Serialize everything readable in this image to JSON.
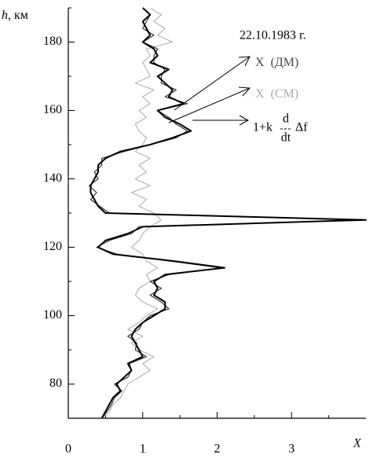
{
  "chart_data": {
    "type": "profile",
    "ylabel": {
      "symbol": "h",
      "text": ", км"
    },
    "xlabel": "X",
    "date": "22.10.1983 г.",
    "ylim": [
      70,
      190
    ],
    "yticks": [
      80,
      100,
      120,
      140,
      160,
      180
    ],
    "yminorticks": [
      90,
      110,
      130,
      150,
      170,
      190
    ],
    "xlim": [
      0,
      4
    ],
    "xticks": [
      0,
      1,
      2,
      3
    ],
    "xminorticks": [
      0.5,
      1.5,
      2.5,
      3.5
    ],
    "y": [
      70,
      72,
      74,
      76,
      78,
      80,
      82,
      84,
      86,
      88,
      90,
      92,
      94,
      96,
      98,
      100,
      102,
      104,
      106,
      108,
      110,
      112,
      114,
      116,
      118,
      120,
      122,
      124,
      126,
      128,
      130,
      132,
      134,
      136,
      138,
      140,
      142,
      144,
      146,
      148,
      150,
      152,
      154,
      156,
      158,
      160,
      162,
      164,
      166,
      168,
      170,
      172,
      174,
      176,
      178,
      180,
      182,
      184,
      186,
      188,
      190
    ],
    "series": [
      {
        "name": "X",
        "label_suffix": "(СМ)",
        "color": "#aaaaaa",
        "width": 1,
        "values": [
          0.45,
          0.55,
          0.6,
          0.7,
          0.75,
          0.8,
          0.95,
          1.1,
          1.0,
          1.15,
          0.95,
          0.85,
          1.0,
          0.8,
          0.95,
          1.05,
          1.2,
          1.0,
          0.9,
          0.95,
          1.1,
          1.05,
          1.2,
          1.05,
          1.0,
          0.85,
          0.95,
          1.0,
          1.1,
          1.25,
          1.15,
          0.95,
          1.05,
          0.85,
          1.1,
          0.9,
          1.05,
          0.95,
          1.1,
          0.9,
          1.0,
          1.05,
          0.95,
          0.9,
          1.05,
          0.95,
          1.1,
          1.0,
          1.15,
          0.9,
          1.1,
          1.05,
          1.0,
          1.1,
          1.05,
          1.4,
          1.2,
          1.3,
          1.15,
          1.25,
          1.1
        ]
      },
      {
        "name": "X",
        "label_suffix": "(ДМ)",
        "color": "#333333",
        "width": 1.2,
        "values": [
          0.45,
          0.52,
          0.58,
          0.62,
          0.72,
          0.62,
          0.8,
          0.85,
          0.82,
          1.05,
          0.9,
          0.92,
          0.8,
          0.95,
          1.0,
          1.1,
          1.35,
          1.25,
          1.1,
          1.25,
          1.1,
          1.35,
          2.05,
          1.35,
          0.65,
          0.38,
          0.55,
          0.85,
          0.95,
          3.95,
          0.55,
          0.42,
          0.3,
          0.38,
          0.28,
          0.4,
          0.35,
          0.45,
          0.45,
          0.75,
          1.1,
          1.45,
          1.6,
          1.45,
          1.35,
          1.2,
          1.6,
          1.3,
          1.45,
          1.25,
          1.25,
          1.3,
          1.15,
          1.15,
          1.2,
          1.0,
          1.15,
          1.0,
          1.05,
          1.1,
          1.0
        ]
      },
      {
        "name": "1+k",
        "formula": {
          "num": "d",
          "den": "dt",
          "suffix": "Δf"
        },
        "color": "#000000",
        "width": 2,
        "values": [
          0.45,
          0.5,
          0.55,
          0.6,
          0.7,
          0.65,
          0.75,
          0.85,
          0.8,
          1.0,
          0.95,
          0.9,
          0.85,
          0.9,
          1.0,
          1.15,
          1.3,
          1.3,
          1.15,
          1.2,
          1.15,
          1.3,
          2.1,
          1.4,
          0.6,
          0.4,
          0.5,
          0.8,
          1.0,
          4.0,
          0.5,
          0.4,
          0.35,
          0.3,
          0.3,
          0.35,
          0.4,
          0.4,
          0.5,
          0.7,
          1.1,
          1.4,
          1.65,
          1.5,
          1.3,
          1.2,
          1.55,
          1.35,
          1.4,
          1.3,
          1.2,
          1.35,
          1.1,
          1.2,
          1.15,
          1.0,
          1.1,
          1.05,
          1.0,
          1.1,
          1.0
        ]
      }
    ]
  }
}
